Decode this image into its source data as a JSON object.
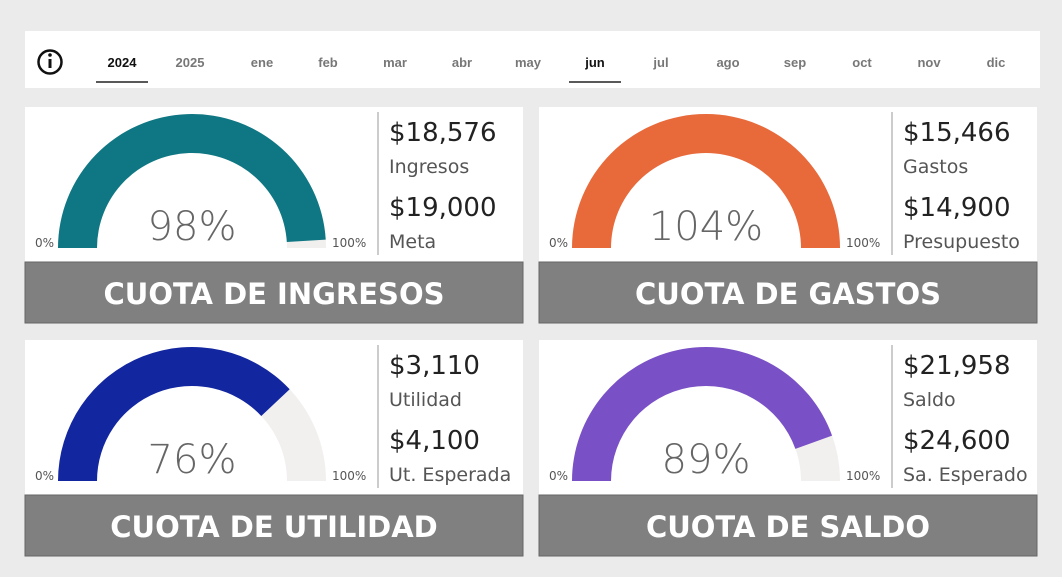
{
  "filters": {
    "tabs": [
      "2024",
      "2025",
      "ene",
      "feb",
      "mar",
      "abr",
      "may",
      "jun",
      "jul",
      "ago",
      "sep",
      "oct",
      "nov",
      "dic"
    ]
  },
  "cards": [
    {
      "title": "CUOTA DE INGRESOS",
      "color": "#0e7783",
      "gauge": {
        "value": 98,
        "label": "98%",
        "min": {
          "value": 0,
          "label": "0%"
        },
        "max": {
          "value": 100,
          "label": "100%"
        }
      },
      "kpis": [
        {
          "value": "$18,576",
          "label": "Ingresos"
        },
        {
          "value": "$19,000",
          "label": "Meta"
        }
      ]
    },
    {
      "title": "CUOTA DE GASTOS",
      "color": "#e8693a",
      "gauge": {
        "value": 104,
        "label": "104%",
        "min": {
          "value": 0,
          "label": "0%"
        },
        "max": {
          "value": 100,
          "label": "100%"
        }
      },
      "kpis": [
        {
          "value": "$15,466",
          "label": "Gastos"
        },
        {
          "value": "$14,900",
          "label": "Presupuesto"
        }
      ]
    },
    {
      "title": "CUOTA DE UTILIDAD",
      "color": "#1226a0",
      "gauge": {
        "value": 76,
        "label": "76%",
        "min": {
          "value": 0,
          "label": "0%"
        },
        "max": {
          "value": 100,
          "label": "100%"
        }
      },
      "kpis": [
        {
          "value": "$3,110",
          "label": "Utilidad"
        },
        {
          "value": "$4,100",
          "label": "Ut. Esperada"
        }
      ]
    },
    {
      "title": "CUOTA DE SALDO",
      "color": "#7a50c6",
      "gauge": {
        "value": 89,
        "label": "89%",
        "min": {
          "value": 0,
          "label": "0%"
        },
        "max": {
          "value": 100,
          "label": "100%"
        }
      },
      "kpis": [
        {
          "value": "$21,958",
          "label": "Saldo"
        },
        {
          "value": "$24,600",
          "label": "Sa. Esperado"
        }
      ]
    }
  ]
}
